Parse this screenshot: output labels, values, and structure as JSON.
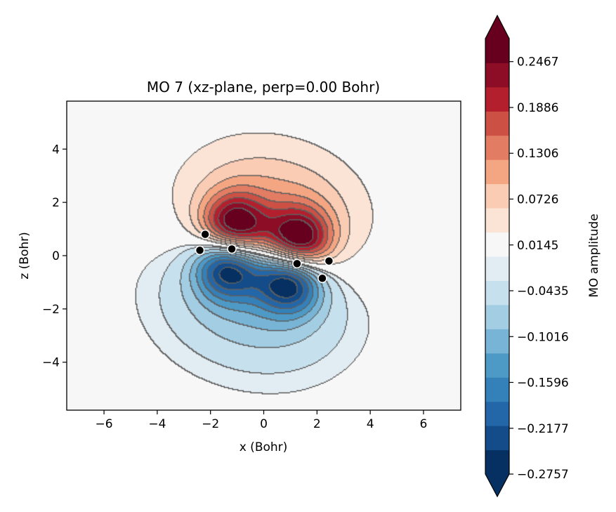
{
  "chart_data": {
    "type": "heatmap",
    "title": "MO 7 (xz-plane, perp=0.00 Bohr)",
    "xlabel": "x (Bohr)",
    "ylabel": "z (Bohr)",
    "xlim": [
      -7.4,
      7.4
    ],
    "ylim": [
      -5.8,
      5.8
    ],
    "xticks": [
      -6,
      -4,
      -2,
      0,
      2,
      4,
      6
    ],
    "yticks": [
      -4,
      -2,
      0,
      2,
      4
    ],
    "xtick_labels": [
      "−6",
      "−4",
      "−2",
      "0",
      "2",
      "4",
      "6"
    ],
    "ytick_labels": [
      "−4",
      "−2",
      "0",
      "2",
      "4"
    ],
    "colormap": "RdBu_r",
    "grid": false,
    "colorbar": {
      "label": "MO amplitude",
      "vmin": -0.2757,
      "vmax": 0.2758,
      "extend": "both",
      "ticks": [
        -0.2757,
        -0.2177,
        -0.1596,
        -0.1016,
        -0.0435,
        0.0145,
        0.0726,
        0.1306,
        0.1886,
        0.2467
      ],
      "tick_labels": [
        "−0.2757",
        "−0.2177",
        "−0.1596",
        "−0.1016",
        "−0.0435",
        "0.0145",
        "0.0726",
        "0.1306",
        "0.1886",
        "0.2467"
      ],
      "colors": [
        "#053061",
        "#134c88",
        "#2467a8",
        "#3480b9",
        "#4e9ac6",
        "#78b4d5",
        "#a2cde3",
        "#c7e0ed",
        "#e2edf3",
        "#f7f7f7",
        "#fbe4d6",
        "#fbccb4",
        "#f4a582",
        "#e27c63",
        "#cd5045",
        "#b41f2e",
        "#8c0d25",
        "#67001f"
      ]
    },
    "atoms": [
      {
        "x": -2.2,
        "z": 0.8
      },
      {
        "x": -2.4,
        "z": 0.2
      },
      {
        "x": -1.2,
        "z": 0.25
      },
      {
        "x": 1.25,
        "z": -0.3
      },
      {
        "x": 2.45,
        "z": -0.2
      },
      {
        "x": 2.2,
        "z": -0.85
      }
    ],
    "lobes": {
      "positive": [
        {
          "x": -1.1,
          "z": 0.95,
          "amplitude": 0.28
        },
        {
          "x": 1.3,
          "z": 0.45,
          "amplitude": 0.28
        }
      ],
      "negative": [
        {
          "x": -1.3,
          "z": -0.3,
          "amplitude": -0.27
        },
        {
          "x": 1.0,
          "z": -0.85,
          "amplitude": -0.27
        }
      ]
    }
  }
}
